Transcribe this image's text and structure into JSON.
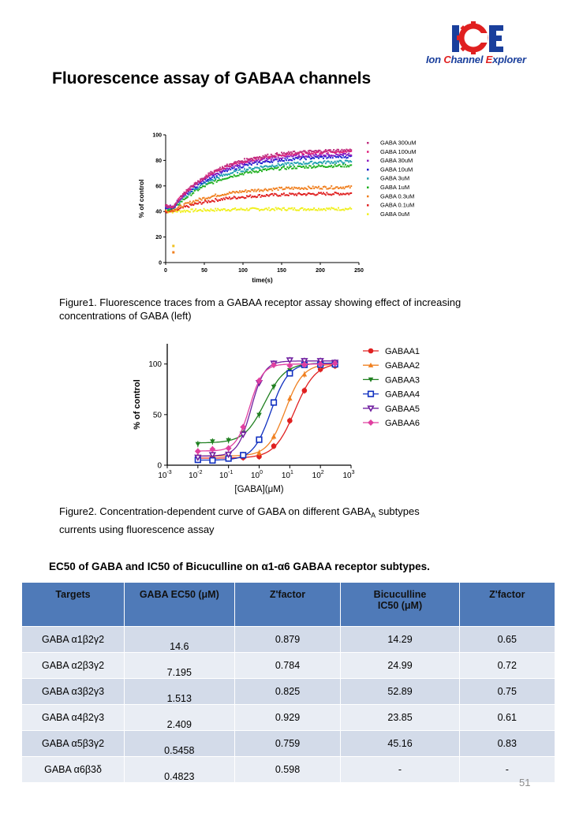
{
  "logo": {
    "text": "Ion Channel Explorer"
  },
  "title": "Fluorescence assay of GABAA channels",
  "figure1": {
    "caption": "Figure1. Fluorescence traces from a GABAA receptor assay showing effect of increasing concentrations of GABA (left)",
    "chart_data": {
      "type": "scatter",
      "xlabel": "time(s)",
      "ylabel": "% of control",
      "xlim": [
        0,
        250
      ],
      "ylim": [
        0,
        100
      ],
      "x_ticks": [
        "0",
        "50",
        "100",
        "150",
        "200",
        "250"
      ],
      "y_ticks": [
        "0",
        "20",
        "40",
        "60",
        "80",
        "100"
      ],
      "legend_position": "right",
      "series": [
        {
          "name": "GABA 300uM",
          "color": "#c03080",
          "baseline": 44,
          "plateau": 88
        },
        {
          "name": "GABA 100uM",
          "color": "#e0207a",
          "baseline": 44,
          "plateau": 87
        },
        {
          "name": "GABA 30uM",
          "color": "#9020c0",
          "baseline": 44,
          "plateau": 85
        },
        {
          "name": "GABA 10uM",
          "color": "#2020d0",
          "baseline": 43,
          "plateau": 83
        },
        {
          "name": "GABA 3uM",
          "color": "#20a0b0",
          "baseline": 43,
          "plateau": 79
        },
        {
          "name": "GABA 1uM",
          "color": "#20b020",
          "baseline": 42,
          "plateau": 76
        },
        {
          "name": "GABA 0.3uM",
          "color": "#f08020",
          "baseline": 41,
          "plateau": 59
        },
        {
          "name": "GABA 0.1uM",
          "color": "#e02020",
          "baseline": 40,
          "plateau": 54
        },
        {
          "name": "GABA 0uM",
          "color": "#f0f020",
          "baseline": 40,
          "plateau": 42
        }
      ]
    }
  },
  "figure2": {
    "caption_line1": "Figure2. Concentration-dependent curve of GABA on different GABA",
    "caption_sub": "A",
    "caption_after_sub": " subtypes",
    "caption_line2": "currents using fluorescence assay",
    "chart_data": {
      "type": "scatter",
      "xlabel": "[GABA](μM)",
      "ylabel": "% of control",
      "xscale": "log",
      "xlim": [
        0.001,
        1000
      ],
      "ylim": [
        0,
        120
      ],
      "x_ticks": [
        {
          "base": "10",
          "exp": "-3"
        },
        {
          "base": "10",
          "exp": "-2"
        },
        {
          "base": "10",
          "exp": "-1"
        },
        {
          "base": "10",
          "exp": "0"
        },
        {
          "base": "10",
          "exp": "1"
        },
        {
          "base": "10",
          "exp": "2"
        },
        {
          "base": "10",
          "exp": "3"
        }
      ],
      "y_ticks": [
        "0",
        "50",
        "100"
      ],
      "legend_position": "right",
      "x": [
        0.01,
        0.03,
        0.1,
        0.3,
        1,
        3,
        10,
        30,
        100,
        300
      ],
      "series": [
        {
          "name": "GABAA1",
          "color": "#e02020",
          "marker": "circle",
          "bottom": 7,
          "top": 101,
          "ec50": 14.6,
          "hill": 1.3
        },
        {
          "name": "GABAA2",
          "color": "#f08020",
          "marker": "triangle-up",
          "bottom": 9,
          "top": 100,
          "ec50": 7.195,
          "hill": 1.5
        },
        {
          "name": "GABAA3",
          "color": "#208020",
          "marker": "triangle-down",
          "bottom": 22,
          "top": 101,
          "ec50": 1.513,
          "hill": 1.3
        },
        {
          "name": "GABAA4",
          "color": "#1030c0",
          "marker": "square",
          "bottom": 5,
          "top": 101,
          "ec50": 2.409,
          "hill": 1.5
        },
        {
          "name": "GABAA5",
          "color": "#7020a0",
          "marker": "triangle-down-open",
          "bottom": 9,
          "top": 103,
          "ec50": 0.5458,
          "hill": 2.0
        },
        {
          "name": "GABAA6",
          "color": "#e040a0",
          "marker": "diamond",
          "bottom": 14,
          "top": 100,
          "ec50": 0.4823,
          "hill": 2.0
        }
      ]
    }
  },
  "table": {
    "title": "EC50 of GABA  and  IC50 of Bicuculline on α1-α6 GABAA  receptor subtypes.",
    "headers": [
      "Targets",
      "GABA EC50 (μM)",
      "Z'factor",
      "Bicuculline",
      "Z'factor"
    ],
    "header_sub": "IC50 (μM)",
    "rows": [
      [
        "GABA α1β2γ2",
        "14.6",
        "0.879",
        "14.29",
        "0.65"
      ],
      [
        "GABA  α2β3γ2",
        "7.195",
        "0.784",
        "24.99",
        "0.72"
      ],
      [
        "GABA α3β2γ3",
        "1.513",
        "0.825",
        "52.89",
        "0.75"
      ],
      [
        "GABA α4β2γ3",
        "2.409",
        "0.929",
        "23.85",
        "0.61"
      ],
      [
        "GABA α5β3γ2",
        "0.5458",
        "0.759",
        "45.16",
        "0.83"
      ],
      [
        "GABA α6β3δ",
        "0.4823",
        "0.598",
        "-",
        "-"
      ]
    ]
  },
  "page_number": "51"
}
